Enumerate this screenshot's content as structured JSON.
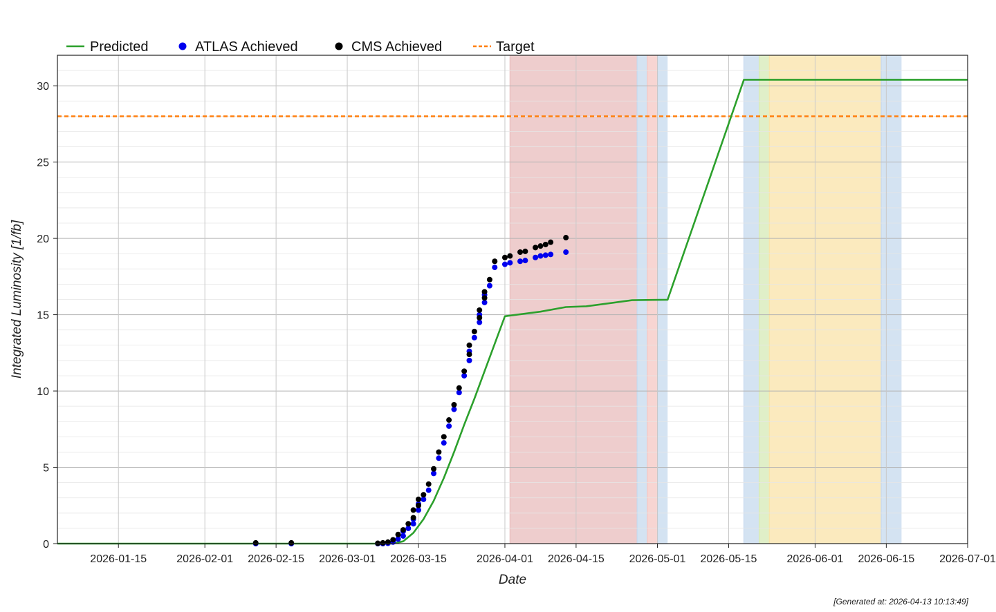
{
  "chart_data": {
    "type": "line",
    "title": "",
    "xlabel": "Date",
    "ylabel": "Integrated Luminosity [1/fb]",
    "xlim": [
      "2026-01-03",
      "2026-07-01"
    ],
    "ylim": [
      0,
      32
    ],
    "x_ticks": [
      "2026-01-15",
      "2026-02-01",
      "2026-02-15",
      "2026-03-01",
      "2026-03-15",
      "2026-04-01",
      "2026-04-15",
      "2026-05-01",
      "2026-05-15",
      "2026-06-01",
      "2026-06-15",
      "2026-07-01"
    ],
    "y_ticks": [
      0,
      5,
      10,
      15,
      20,
      25,
      30
    ],
    "grid": true,
    "legend_position": "top",
    "target": {
      "name": "Target",
      "value": 28,
      "color": "#ff7f0e"
    },
    "shaded_periods": [
      {
        "start": "2026-04-02",
        "end": "2026-04-27",
        "color": "#e8bcbc"
      },
      {
        "start": "2026-04-27",
        "end": "2026-04-29",
        "color": "#c6d9ee"
      },
      {
        "start": "2026-04-29",
        "end": "2026-05-01",
        "color": "#f4c7c3"
      },
      {
        "start": "2026-05-01",
        "end": "2026-05-03",
        "color": "#c6d9ee"
      },
      {
        "start": "2026-05-18",
        "end": "2026-05-21",
        "color": "#c6d9ee"
      },
      {
        "start": "2026-05-21",
        "end": "2026-05-23",
        "color": "#d6eab5"
      },
      {
        "start": "2026-05-23",
        "end": "2026-06-14",
        "color": "#f9e3a8"
      },
      {
        "start": "2026-06-14",
        "end": "2026-06-18",
        "color": "#c6d9ee"
      }
    ],
    "series": [
      {
        "name": "Predicted",
        "type": "line",
        "color": "#2ca02c",
        "points": [
          [
            "2026-01-03",
            0
          ],
          [
            "2026-03-10",
            0
          ],
          [
            "2026-03-12",
            0.15
          ],
          [
            "2026-03-14",
            0.7
          ],
          [
            "2026-03-16",
            1.6
          ],
          [
            "2026-03-18",
            2.8
          ],
          [
            "2026-03-20",
            4.3
          ],
          [
            "2026-03-22",
            6.0
          ],
          [
            "2026-03-24",
            7.8
          ],
          [
            "2026-03-26",
            9.5
          ],
          [
            "2026-03-28",
            11.3
          ],
          [
            "2026-03-30",
            13.1
          ],
          [
            "2026-04-01",
            14.9
          ],
          [
            "2026-04-08",
            15.2
          ],
          [
            "2026-04-13",
            15.5
          ],
          [
            "2026-04-17",
            15.55
          ],
          [
            "2026-04-26",
            15.95
          ],
          [
            "2026-05-03",
            15.98
          ],
          [
            "2026-05-18",
            30.4
          ],
          [
            "2026-07-01",
            30.4
          ]
        ]
      },
      {
        "name": "ATLAS Achieved",
        "type": "scatter",
        "color": "#0000ee",
        "points": [
          [
            "2026-02-11",
            0
          ],
          [
            "2026-02-18",
            0
          ],
          [
            "2026-03-07",
            0
          ],
          [
            "2026-03-08",
            0
          ],
          [
            "2026-03-09",
            0.02
          ],
          [
            "2026-03-10",
            0.1
          ],
          [
            "2026-03-11",
            0.3
          ],
          [
            "2026-03-12",
            0.5
          ],
          [
            "2026-03-12",
            0.8
          ],
          [
            "2026-03-13",
            1.0
          ],
          [
            "2026-03-14",
            1.3
          ],
          [
            "2026-03-14",
            1.6
          ],
          [
            "2026-03-15",
            2.2
          ],
          [
            "2026-03-15",
            2.6
          ],
          [
            "2026-03-16",
            2.9
          ],
          [
            "2026-03-17",
            3.5
          ],
          [
            "2026-03-18",
            4.6
          ],
          [
            "2026-03-19",
            5.6
          ],
          [
            "2026-03-20",
            6.6
          ],
          [
            "2026-03-21",
            7.7
          ],
          [
            "2026-03-22",
            8.8
          ],
          [
            "2026-03-23",
            9.9
          ],
          [
            "2026-03-24",
            11.0
          ],
          [
            "2026-03-25",
            12.0
          ],
          [
            "2026-03-25",
            12.6
          ],
          [
            "2026-03-26",
            13.5
          ],
          [
            "2026-03-27",
            14.5
          ],
          [
            "2026-03-27",
            15.0
          ],
          [
            "2026-03-28",
            15.8
          ],
          [
            "2026-03-28",
            16.3
          ],
          [
            "2026-03-29",
            16.9
          ],
          [
            "2026-03-30",
            18.1
          ],
          [
            "2026-04-01",
            18.3
          ],
          [
            "2026-04-02",
            18.4
          ],
          [
            "2026-04-04",
            18.5
          ],
          [
            "2026-04-05",
            18.55
          ],
          [
            "2026-04-07",
            18.75
          ],
          [
            "2026-04-08",
            18.85
          ],
          [
            "2026-04-09",
            18.9
          ],
          [
            "2026-04-10",
            18.95
          ],
          [
            "2026-04-13",
            19.1
          ]
        ]
      },
      {
        "name": "CMS Achieved",
        "type": "scatter",
        "color": "#000000",
        "points": [
          [
            "2026-02-11",
            0.05
          ],
          [
            "2026-02-18",
            0.05
          ],
          [
            "2026-03-07",
            0.02
          ],
          [
            "2026-03-08",
            0.05
          ],
          [
            "2026-03-09",
            0.1
          ],
          [
            "2026-03-10",
            0.25
          ],
          [
            "2026-03-11",
            0.6
          ],
          [
            "2026-03-12",
            0.9
          ],
          [
            "2026-03-13",
            1.3
          ],
          [
            "2026-03-14",
            1.7
          ],
          [
            "2026-03-14",
            2.2
          ],
          [
            "2026-03-15",
            2.5
          ],
          [
            "2026-03-15",
            2.9
          ],
          [
            "2026-03-16",
            3.2
          ],
          [
            "2026-03-17",
            3.9
          ],
          [
            "2026-03-18",
            4.9
          ],
          [
            "2026-03-19",
            6.0
          ],
          [
            "2026-03-20",
            7.0
          ],
          [
            "2026-03-21",
            8.1
          ],
          [
            "2026-03-22",
            9.1
          ],
          [
            "2026-03-23",
            10.2
          ],
          [
            "2026-03-24",
            11.3
          ],
          [
            "2026-03-25",
            12.4
          ],
          [
            "2026-03-25",
            13.0
          ],
          [
            "2026-03-26",
            13.9
          ],
          [
            "2026-03-27",
            14.8
          ],
          [
            "2026-03-27",
            15.3
          ],
          [
            "2026-03-28",
            16.1
          ],
          [
            "2026-03-28",
            16.5
          ],
          [
            "2026-03-29",
            17.3
          ],
          [
            "2026-03-30",
            18.5
          ],
          [
            "2026-04-01",
            18.75
          ],
          [
            "2026-04-02",
            18.85
          ],
          [
            "2026-04-04",
            19.1
          ],
          [
            "2026-04-05",
            19.15
          ],
          [
            "2026-04-07",
            19.4
          ],
          [
            "2026-04-08",
            19.5
          ],
          [
            "2026-04-09",
            19.6
          ],
          [
            "2026-04-10",
            19.75
          ],
          [
            "2026-04-13",
            20.05
          ]
        ]
      }
    ],
    "footer": "[Generated at: 2026-04-13 10:13:49]"
  }
}
